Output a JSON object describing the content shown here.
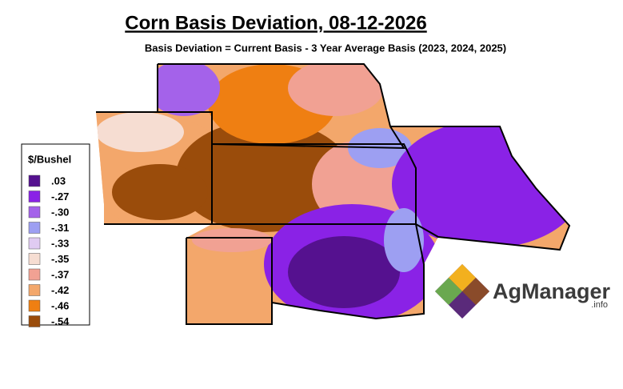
{
  "header": {
    "title": "Corn Basis Deviation, 08-12-2026",
    "subtitle": "Basis Deviation = Current Basis - 3 Year Average Basis (2023, 2024, 2025)"
  },
  "legend": {
    "title": "$/Bushel",
    "items": [
      {
        "value": 0.03,
        "label": ".03",
        "color": "#55118f"
      },
      {
        "value": -0.27,
        "label": "-.27",
        "color": "#8a22e6"
      },
      {
        "value": -0.3,
        "label": "-.30",
        "color": "#a462ea"
      },
      {
        "value": -0.31,
        "label": "-.31",
        "color": "#9d9ff2"
      },
      {
        "value": -0.33,
        "label": "-.33",
        "color": "#e0cbf2"
      },
      {
        "value": -0.35,
        "label": "-.35",
        "color": "#f6ddd2"
      },
      {
        "value": -0.37,
        "label": "-.37",
        "color": "#f1a193"
      },
      {
        "value": -0.42,
        "label": "-.42",
        "color": "#f3a76b"
      },
      {
        "value": -0.46,
        "label": "-.46",
        "color": "#ef7f12"
      },
      {
        "value": -0.54,
        "label": "-.54",
        "color": "#9a4c0b"
      }
    ]
  },
  "logo": {
    "text": "AgManager",
    "suffix": ".info"
  }
}
